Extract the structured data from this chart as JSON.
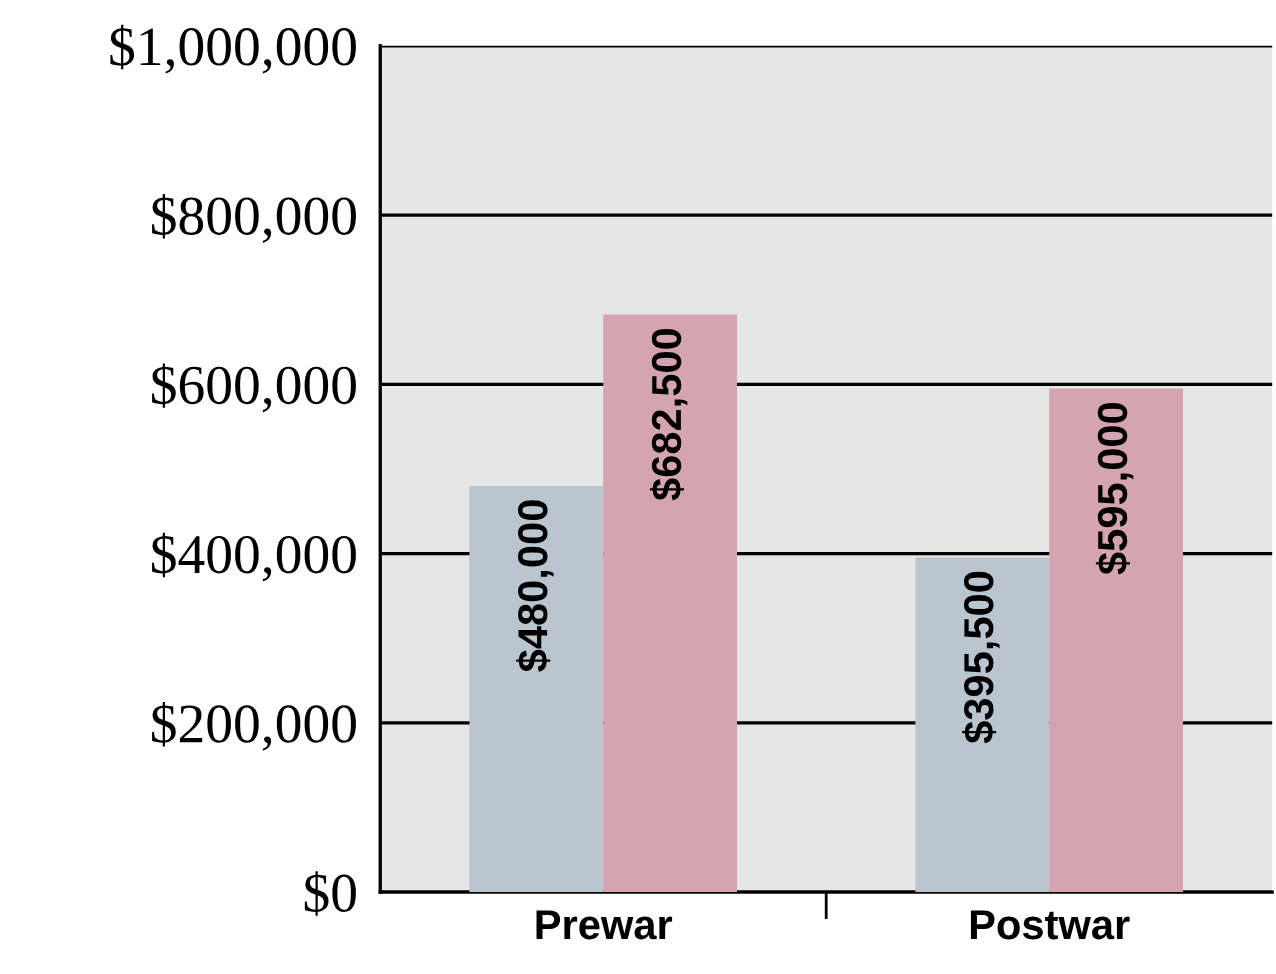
{
  "chart_data": {
    "type": "bar",
    "categories": [
      "Prewar",
      "Postwar"
    ],
    "series": [
      {
        "color": "#b9c5cf",
        "values": [
          480000,
          395500
        ]
      },
      {
        "color": "#d4a4b1",
        "values": [
          682500,
          595000
        ]
      }
    ],
    "ylim": [
      0,
      1000000
    ],
    "yticks": [
      {
        "value": 0,
        "label": "$0"
      },
      {
        "value": 200000,
        "label": "$200,000"
      },
      {
        "value": 400000,
        "label": "$400,000"
      },
      {
        "value": 600000,
        "label": "$600,000"
      },
      {
        "value": 800000,
        "label": "$800,000"
      },
      {
        "value": 1000000,
        "label": "$1,000,000"
      }
    ],
    "value_labels": [
      [
        "$480,000",
        "$395,500"
      ],
      [
        "$682,500",
        "$595,000"
      ]
    ],
    "grid": "y",
    "legend": false
  }
}
